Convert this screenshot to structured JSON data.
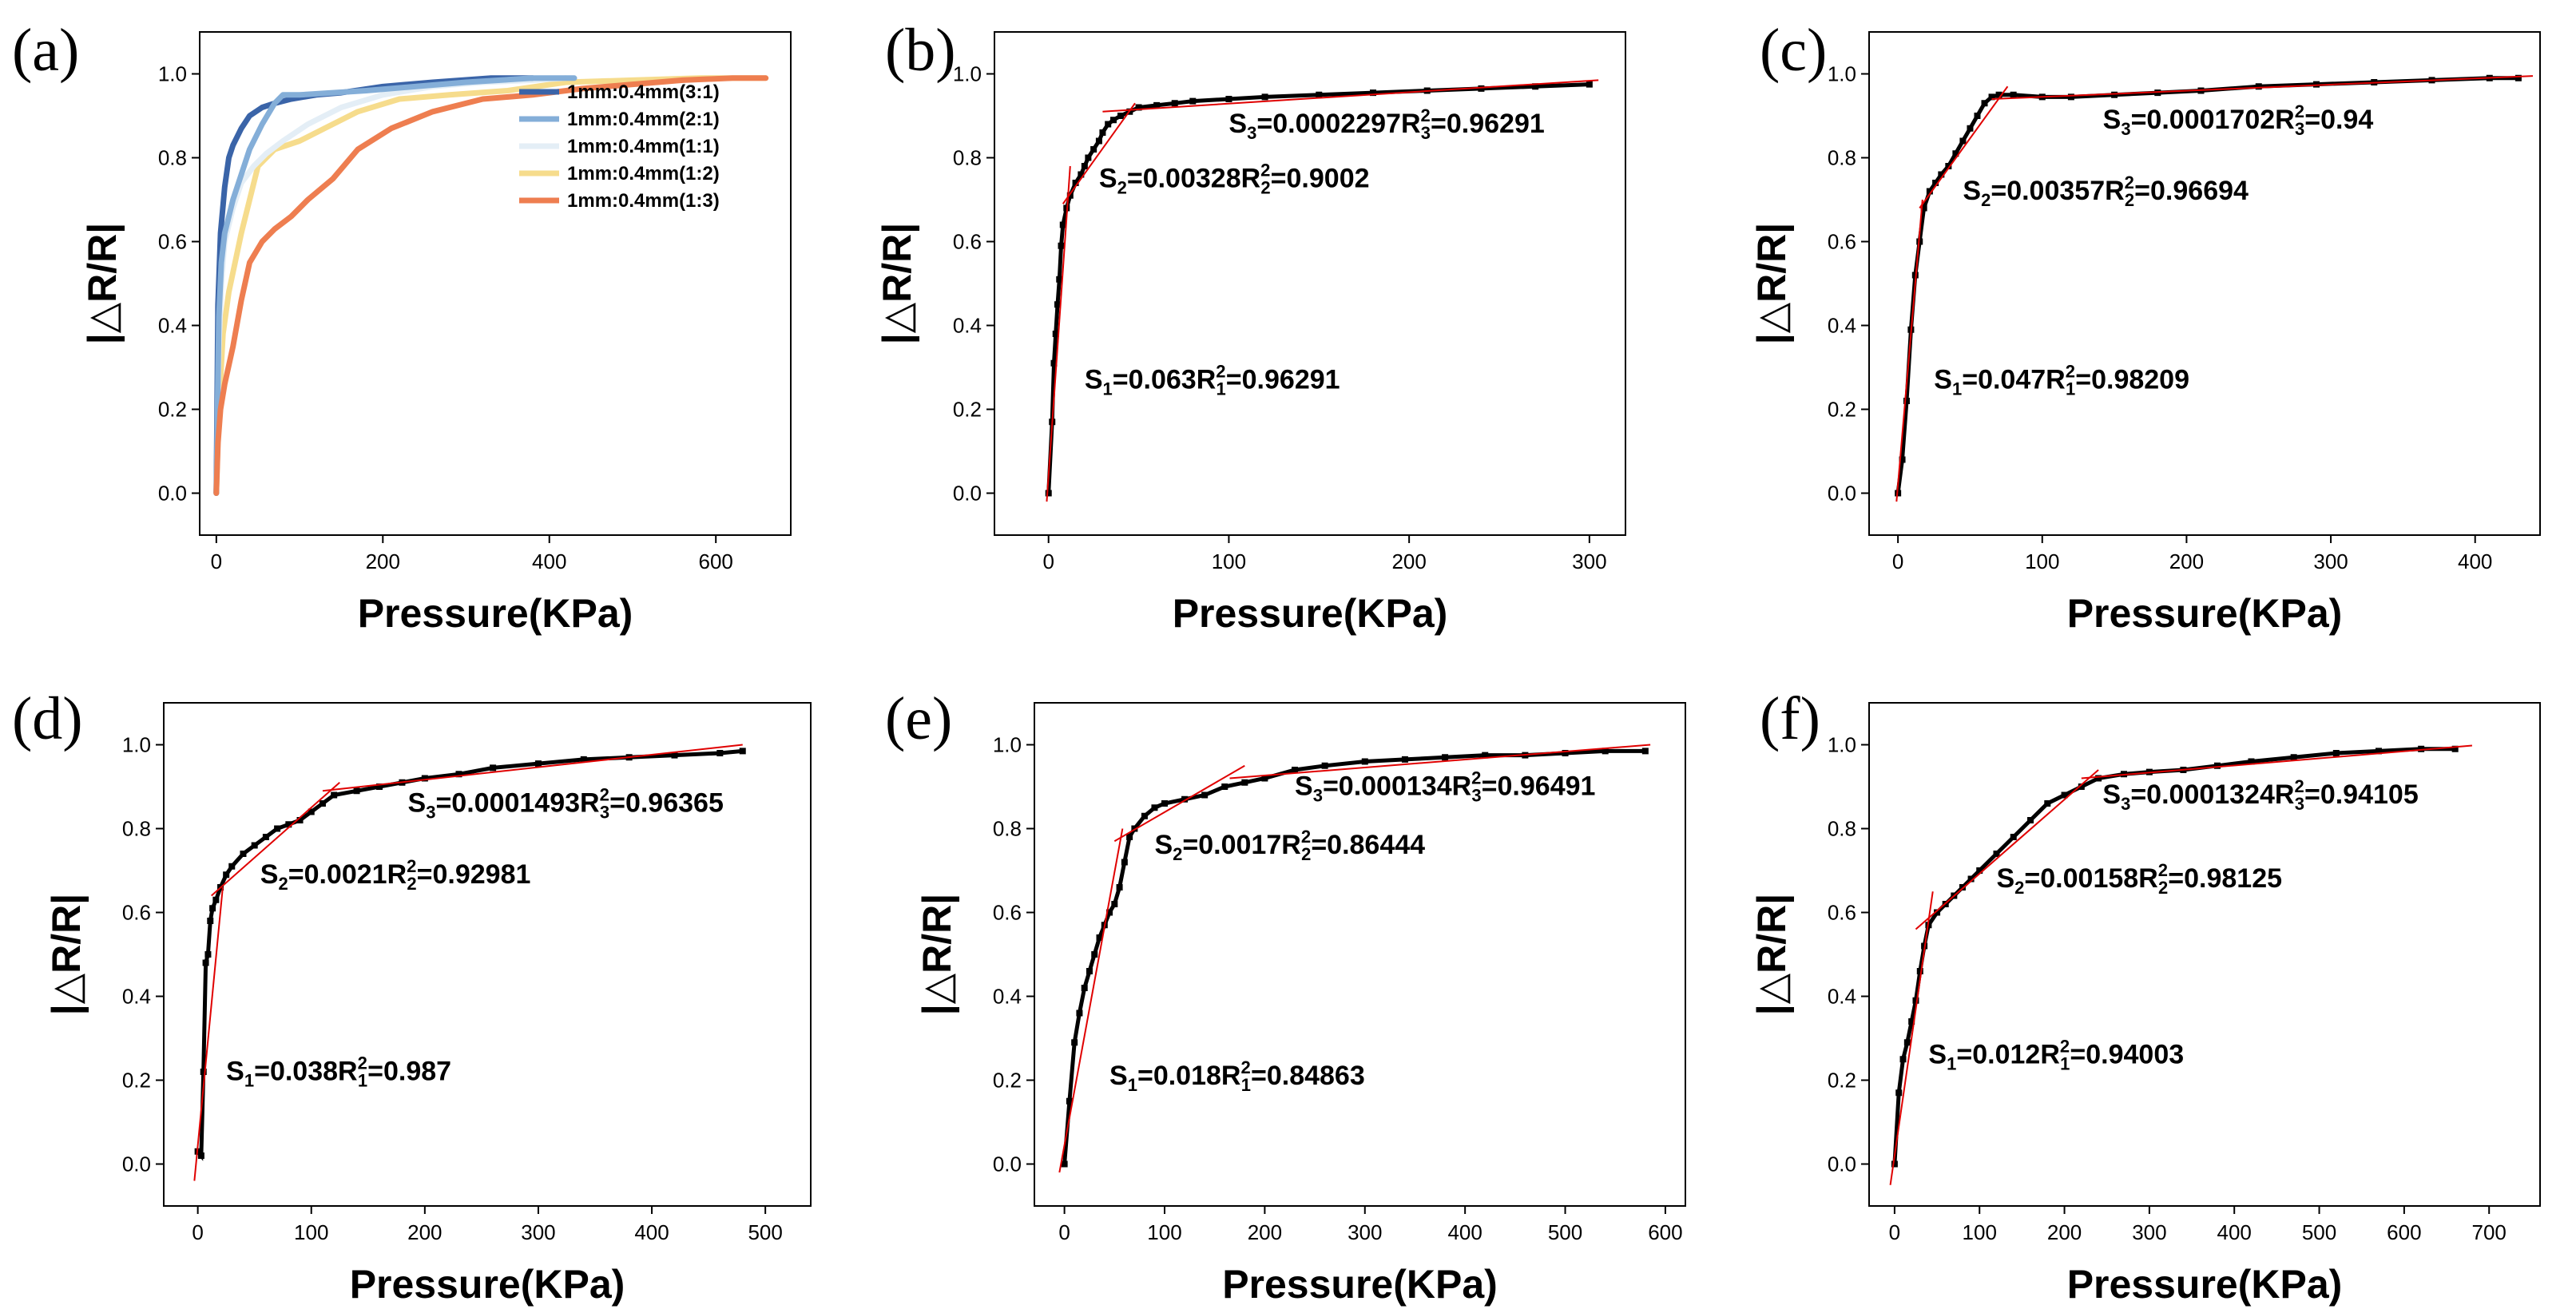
{
  "chart_data": [
    {
      "panel": "(a)",
      "type": "line",
      "xlabel": "Pressure(KPa)",
      "ylabel": "|△R/R|",
      "xlim": [
        -20,
        690
      ],
      "ylim": [
        -0.1,
        1.1
      ],
      "xticks": [
        0,
        200,
        400,
        600
      ],
      "yticks": [
        0.0,
        0.2,
        0.4,
        0.6,
        0.8,
        1.0
      ],
      "legend_position": "right",
      "series": [
        {
          "name": "1mm:0.4mm(1:2)",
          "color": "#f6dc8c",
          "x": [
            0,
            3,
            8,
            15,
            30,
            50,
            70,
            100,
            130,
            170,
            220,
            280,
            350,
            420,
            500,
            580,
            660
          ],
          "y": [
            0.0,
            0.2,
            0.38,
            0.48,
            0.62,
            0.78,
            0.82,
            0.84,
            0.87,
            0.91,
            0.94,
            0.95,
            0.96,
            0.98,
            0.985,
            0.99,
            0.99
          ]
        },
        {
          "name": "1mm:0.4mm(1:1)",
          "color": "#e4eef6",
          "x": [
            0,
            3,
            6,
            10,
            20,
            30,
            45,
            60,
            80,
            110,
            150,
            200,
            260,
            320,
            380,
            420
          ],
          "y": [
            0.0,
            0.35,
            0.5,
            0.6,
            0.68,
            0.74,
            0.78,
            0.81,
            0.84,
            0.88,
            0.92,
            0.95,
            0.97,
            0.98,
            0.985,
            0.99
          ]
        },
        {
          "name": "1mm:0.4mm(3:1)",
          "color": "#3a64a8",
          "x": [
            0,
            2,
            5,
            10,
            15,
            20,
            30,
            40,
            55,
            70,
            90,
            120,
            150,
            200,
            260,
            330,
            380
          ],
          "y": [
            0.0,
            0.45,
            0.62,
            0.73,
            0.8,
            0.83,
            0.87,
            0.9,
            0.92,
            0.93,
            0.94,
            0.95,
            0.955,
            0.97,
            0.98,
            0.99,
            0.99
          ]
        },
        {
          "name": "1mm:0.4mm(2:1)",
          "color": "#84aed8",
          "x": [
            0,
            3,
            6,
            10,
            20,
            30,
            40,
            55,
            70,
            80,
            100,
            140,
            180,
            240,
            300,
            380,
            430
          ],
          "y": [
            0.0,
            0.42,
            0.55,
            0.62,
            0.7,
            0.76,
            0.82,
            0.88,
            0.93,
            0.95,
            0.95,
            0.955,
            0.96,
            0.97,
            0.98,
            0.99,
            0.99
          ]
        },
        {
          "name": "1mm:0.4mm(1:3)",
          "color": "#ee7e50",
          "x": [
            0,
            2,
            5,
            10,
            20,
            30,
            40,
            55,
            70,
            90,
            110,
            140,
            170,
            210,
            260,
            320,
            380,
            440,
            500,
            560,
            620,
            660
          ],
          "y": [
            0.0,
            0.12,
            0.2,
            0.26,
            0.35,
            0.46,
            0.55,
            0.6,
            0.63,
            0.66,
            0.7,
            0.75,
            0.82,
            0.87,
            0.91,
            0.94,
            0.95,
            0.965,
            0.975,
            0.985,
            0.99,
            0.99
          ]
        }
      ]
    },
    {
      "panel": "(b)",
      "type": "scatter",
      "xlabel": "Pressure(KPa)",
      "ylabel": "|△R/R|",
      "xlim": [
        -30,
        320
      ],
      "ylim": [
        -0.1,
        1.1
      ],
      "xticks": [
        0,
        100,
        200,
        300
      ],
      "yticks": [
        0.0,
        0.2,
        0.4,
        0.6,
        0.8,
        1.0
      ],
      "points": {
        "x": [
          0,
          2,
          3,
          4,
          5,
          6,
          7,
          8,
          10,
          12,
          15,
          18,
          20,
          22,
          25,
          28,
          30,
          33,
          36,
          40,
          45,
          50,
          60,
          70,
          80,
          100,
          120,
          150,
          180,
          210,
          240,
          270,
          300
        ],
        "y": [
          0.0,
          0.17,
          0.31,
          0.38,
          0.45,
          0.51,
          0.59,
          0.64,
          0.68,
          0.71,
          0.74,
          0.76,
          0.78,
          0.8,
          0.82,
          0.84,
          0.86,
          0.88,
          0.89,
          0.9,
          0.91,
          0.92,
          0.925,
          0.93,
          0.935,
          0.94,
          0.945,
          0.95,
          0.955,
          0.96,
          0.965,
          0.97,
          0.975
        ]
      },
      "fits": [
        {
          "x": [
            -1,
            12
          ],
          "y": [
            -0.02,
            0.78
          ]
        },
        {
          "x": [
            8,
            48
          ],
          "y": [
            0.69,
            0.93
          ]
        },
        {
          "x": [
            30,
            305
          ],
          "y": [
            0.91,
            0.985
          ]
        }
      ],
      "annotations": [
        {
          "S": "S",
          "sn": "1",
          "Sval": "=0.063",
          "R": "R",
          "rsup": "2",
          "rsub": "1",
          "Rval": "=0.96291",
          "ax": 20,
          "ay": 0.25
        },
        {
          "S": "S",
          "sn": "2",
          "Sval": "=0.00328",
          "R": "R",
          "rsup": "2",
          "rsub": "2",
          "Rval": "=0.9002",
          "ax": 28,
          "ay": 0.73
        },
        {
          "S": "S",
          "sn": "3",
          "Sval": "=0.0002297",
          "R": "R",
          "rsup": "2",
          "rsub": "3",
          "Rval": "=0.96291",
          "ax": 100,
          "ay": 0.86
        }
      ]
    },
    {
      "panel": "(c)",
      "type": "scatter",
      "xlabel": "Pressure(KPa)",
      "ylabel": "|△R/R|",
      "xlim": [
        -20,
        445
      ],
      "ylim": [
        -0.1,
        1.1
      ],
      "xticks": [
        0,
        100,
        200,
        300,
        400
      ],
      "yticks": [
        0.0,
        0.2,
        0.4,
        0.6,
        0.8,
        1.0
      ],
      "points": {
        "x": [
          0,
          3,
          6,
          9,
          12,
          15,
          18,
          22,
          26,
          30,
          35,
          40,
          45,
          50,
          55,
          60,
          65,
          70,
          80,
          100,
          120,
          150,
          180,
          210,
          250,
          290,
          330,
          370,
          410,
          430
        ],
        "y": [
          0.0,
          0.08,
          0.22,
          0.39,
          0.52,
          0.6,
          0.68,
          0.72,
          0.74,
          0.76,
          0.78,
          0.81,
          0.84,
          0.87,
          0.9,
          0.93,
          0.945,
          0.95,
          0.95,
          0.945,
          0.945,
          0.95,
          0.955,
          0.96,
          0.97,
          0.975,
          0.98,
          0.985,
          0.99,
          0.99
        ]
      },
      "fits": [
        {
          "x": [
            -1,
            17
          ],
          "y": [
            -0.02,
            0.7
          ]
        },
        {
          "x": [
            15,
            76
          ],
          "y": [
            0.68,
            0.97
          ]
        },
        {
          "x": [
            65,
            440
          ],
          "y": [
            0.94,
            0.995
          ]
        }
      ],
      "annotations": [
        {
          "S": "S",
          "sn": "1",
          "Sval": "=0.047",
          "R": "R",
          "rsup": "2",
          "rsub": "1",
          "Rval": "=0.98209",
          "ax": 25,
          "ay": 0.25
        },
        {
          "S": "S",
          "sn": "2",
          "Sval": "=0.00357",
          "R": "R",
          "rsup": "2",
          "rsub": "2",
          "Rval": "=0.96694",
          "ax": 45,
          "ay": 0.7
        },
        {
          "S": "S",
          "sn": "3",
          "Sval": "=0.0001702",
          "R": "R",
          "rsup": "2",
          "rsub": "3",
          "Rval": "=0.94",
          "ax": 142,
          "ay": 0.87
        }
      ]
    },
    {
      "panel": "(d)",
      "type": "scatter",
      "xlabel": "Pressure(KPa)",
      "ylabel": "|△R/R|",
      "xlim": [
        -30,
        540
      ],
      "ylim": [
        -0.1,
        1.1
      ],
      "xticks": [
        0,
        100,
        200,
        300,
        400,
        500
      ],
      "yticks": [
        0.0,
        0.2,
        0.4,
        0.6,
        0.8,
        1.0
      ],
      "points": {
        "x": [
          0,
          3,
          5,
          7,
          9,
          11,
          13,
          16,
          20,
          25,
          30,
          40,
          50,
          60,
          70,
          80,
          90,
          100,
          110,
          120,
          140,
          160,
          180,
          200,
          230,
          260,
          300,
          340,
          380,
          420,
          460,
          480
        ],
        "y": [
          0.03,
          0.02,
          0.22,
          0.48,
          0.5,
          0.58,
          0.61,
          0.63,
          0.66,
          0.69,
          0.71,
          0.74,
          0.76,
          0.78,
          0.8,
          0.81,
          0.82,
          0.84,
          0.86,
          0.88,
          0.89,
          0.9,
          0.91,
          0.92,
          0.93,
          0.945,
          0.955,
          0.965,
          0.97,
          0.975,
          0.98,
          0.985
        ]
      },
      "fits": [
        {
          "x": [
            -3,
            22
          ],
          "y": [
            -0.04,
            0.66
          ]
        },
        {
          "x": [
            12,
            125
          ],
          "y": [
            0.64,
            0.91
          ]
        },
        {
          "x": [
            110,
            480
          ],
          "y": [
            0.89,
            1.0
          ]
        }
      ],
      "annotations": [
        {
          "S": "S",
          "sn": "1",
          "Sval": "=0.038",
          "R": "R",
          "rsup": "2",
          "rsub": "1",
          "Rval": "=0.987",
          "ax": 25,
          "ay": 0.2
        },
        {
          "S": "S",
          "sn": "2",
          "Sval": "=0.0021",
          "R": "R",
          "rsup": "2",
          "rsub": "2",
          "Rval": "=0.92981",
          "ax": 55,
          "ay": 0.67
        },
        {
          "S": "S",
          "sn": "3",
          "Sval": "=0.0001493",
          "R": "R",
          "rsup": "2",
          "rsub": "3",
          "Rval": "=0.96365",
          "ax": 185,
          "ay": 0.84
        }
      ]
    },
    {
      "panel": "(e)",
      "type": "scatter",
      "xlabel": "Pressure(KPa)",
      "ylabel": "|△R/R|",
      "xlim": [
        -30,
        620
      ],
      "ylim": [
        -0.1,
        1.1
      ],
      "xticks": [
        0,
        100,
        200,
        300,
        400,
        500,
        600
      ],
      "yticks": [
        0.0,
        0.2,
        0.4,
        0.6,
        0.8,
        1.0
      ],
      "points": {
        "x": [
          0,
          5,
          10,
          15,
          20,
          25,
          30,
          35,
          40,
          45,
          50,
          55,
          60,
          65,
          70,
          80,
          90,
          100,
          120,
          140,
          160,
          180,
          200,
          230,
          260,
          300,
          340,
          380,
          420,
          460,
          500,
          540,
          580
        ],
        "y": [
          0.0,
          0.15,
          0.29,
          0.36,
          0.42,
          0.46,
          0.5,
          0.54,
          0.57,
          0.6,
          0.62,
          0.66,
          0.72,
          0.78,
          0.8,
          0.83,
          0.85,
          0.86,
          0.87,
          0.88,
          0.9,
          0.91,
          0.92,
          0.94,
          0.95,
          0.96,
          0.965,
          0.97,
          0.975,
          0.975,
          0.98,
          0.985,
          0.985
        ]
      },
      "fits": [
        {
          "x": [
            -5,
            58
          ],
          "y": [
            -0.02,
            0.8
          ]
        },
        {
          "x": [
            50,
            180
          ],
          "y": [
            0.77,
            0.95
          ]
        },
        {
          "x": [
            165,
            585
          ],
          "y": [
            0.92,
            1.0
          ]
        }
      ],
      "annotations": [
        {
          "S": "S",
          "sn": "1",
          "Sval": "=0.018",
          "R": "R",
          "rsup": "2",
          "rsub": "1",
          "Rval": "=0.84863",
          "ax": 45,
          "ay": 0.19
        },
        {
          "S": "S",
          "sn": "2",
          "Sval": "=0.0017",
          "R": "R",
          "rsup": "2",
          "rsub": "2",
          "Rval": "=0.86444",
          "ax": 90,
          "ay": 0.74
        },
        {
          "S": "S",
          "sn": "3",
          "Sval": "=0.000134",
          "R": "R",
          "rsup": "2",
          "rsub": "3",
          "Rval": "=0.96491",
          "ax": 230,
          "ay": 0.88
        }
      ]
    },
    {
      "panel": "(f)",
      "type": "scatter",
      "xlabel": "Pressure(KPa)",
      "ylabel": "|△R/R|",
      "xlim": [
        -30,
        760
      ],
      "ylim": [
        -0.1,
        1.1
      ],
      "xticks": [
        0,
        100,
        200,
        300,
        400,
        500,
        600,
        700
      ],
      "yticks": [
        0.0,
        0.2,
        0.4,
        0.6,
        0.8,
        1.0
      ],
      "points": {
        "x": [
          0,
          5,
          10,
          15,
          20,
          25,
          30,
          35,
          40,
          50,
          60,
          70,
          80,
          90,
          100,
          120,
          140,
          160,
          180,
          200,
          220,
          240,
          270,
          300,
          340,
          380,
          420,
          470,
          520,
          570,
          620,
          660
        ],
        "y": [
          0.0,
          0.17,
          0.25,
          0.29,
          0.34,
          0.39,
          0.46,
          0.52,
          0.57,
          0.6,
          0.62,
          0.64,
          0.66,
          0.68,
          0.7,
          0.74,
          0.78,
          0.82,
          0.86,
          0.88,
          0.9,
          0.92,
          0.93,
          0.935,
          0.94,
          0.95,
          0.96,
          0.97,
          0.98,
          0.985,
          0.99,
          0.99
        ]
      },
      "fits": [
        {
          "x": [
            -5,
            45
          ],
          "y": [
            -0.05,
            0.65
          ]
        },
        {
          "x": [
            25,
            240
          ],
          "y": [
            0.56,
            0.94
          ]
        },
        {
          "x": [
            220,
            680
          ],
          "y": [
            0.92,
            0.998
          ]
        }
      ],
      "annotations": [
        {
          "S": "S",
          "sn": "1",
          "Sval": "=0.012",
          "R": "R",
          "rsup": "2",
          "rsub": "1",
          "Rval": "=0.94003",
          "ax": 40,
          "ay": 0.24
        },
        {
          "S": "S",
          "sn": "2",
          "Sval": "=0.00158",
          "R": "R",
          "rsup": "2",
          "rsub": "2",
          "Rval": "=0.98125",
          "ax": 120,
          "ay": 0.66
        },
        {
          "S": "S",
          "sn": "3",
          "Sval": "=0.0001324",
          "R": "R",
          "rsup": "2",
          "rsub": "3",
          "Rval": "=0.94105",
          "ax": 245,
          "ay": 0.86
        }
      ]
    }
  ],
  "style": {
    "marker_color": "#000000",
    "fit_color": "#e00000",
    "axis_color": "#000000"
  }
}
